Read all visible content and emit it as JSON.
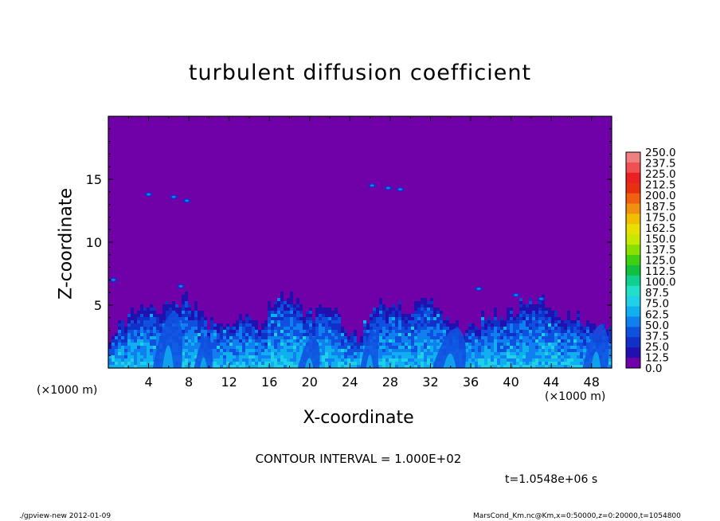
{
  "chart_data": {
    "type": "heatmap",
    "title": "turbulent diffusion coefficient",
    "xlabel": "X-coordinate",
    "ylabel": "Z-coordinate",
    "x_unit_left": "(×1000 m)",
    "x_unit_right": "(×1000 m)",
    "xlim": [
      0,
      50
    ],
    "ylim": [
      0,
      20
    ],
    "x_ticks": [
      "4",
      "8",
      "12",
      "16",
      "20",
      "24",
      "28",
      "32",
      "36",
      "40",
      "44",
      "48"
    ],
    "y_ticks": [
      "5",
      "10",
      "15"
    ],
    "colorbar": {
      "levels": [
        "250.0",
        "237.5",
        "225.0",
        "212.5",
        "200.0",
        "187.5",
        "175.0",
        "162.5",
        "150.0",
        "137.5",
        "125.0",
        "112.5",
        "100.0",
        "87.5",
        "75.0",
        "62.5",
        "50.0",
        "37.5",
        "25.0",
        "12.5",
        "0.0"
      ],
      "colors": [
        "#f08080",
        "#f05050",
        "#ec2020",
        "#e83010",
        "#f06010",
        "#f09010",
        "#f0c000",
        "#e8e000",
        "#c8e800",
        "#88e000",
        "#40d010",
        "#10c040",
        "#10d090",
        "#20e0c8",
        "#20d0e8",
        "#10b0f0",
        "#1080f0",
        "#1050e0",
        "#1030c8",
        "#2010b0",
        "#7000a8"
      ]
    },
    "background_color": "#7000a8",
    "contour_interval": "CONTOUR INTERVAL = 1.000E+02",
    "time": "t=1.0548e+06 s"
  },
  "footer": {
    "left": "./gpview-new   2012-01-09",
    "right": "MarsCond_Km.nc@Km,x=0:50000,z=0:20000,t=1054800"
  }
}
